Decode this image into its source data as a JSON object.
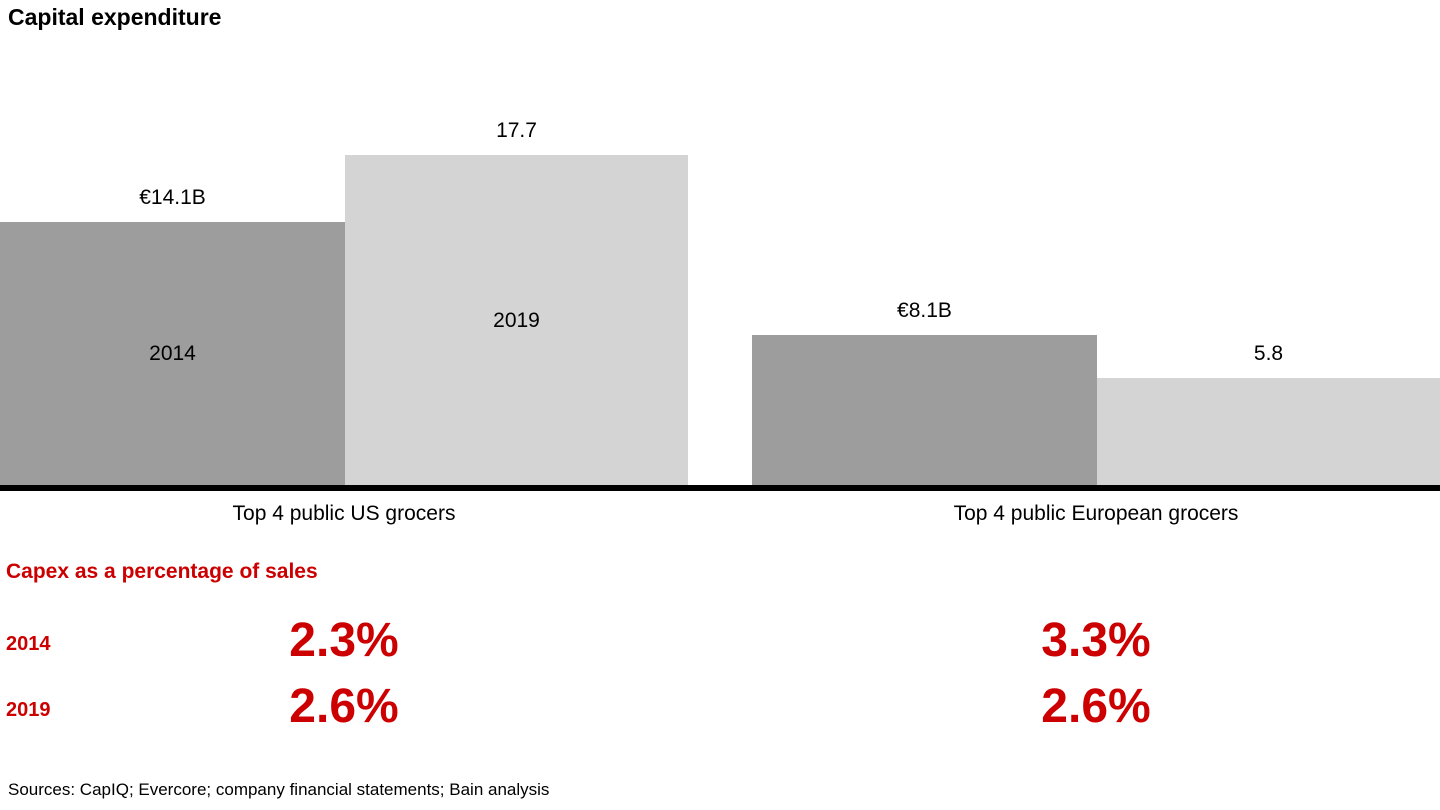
{
  "title": "Capital expenditure",
  "chart_data": {
    "type": "bar",
    "title": "Capital expenditure",
    "unit": "EUR billions",
    "ylim": [
      0,
      19
    ],
    "grid": false,
    "legend": "none (years labeled inside bars)",
    "colors": {
      "2014": "#9d9d9d",
      "2019": "#d4d4d4"
    },
    "groups": [
      {
        "category": "Top 4 public US grocers",
        "bars": [
          {
            "year": "2014",
            "value": 14.1,
            "label": "€14.1B",
            "inside_label": "2014"
          },
          {
            "year": "2019",
            "value": 17.7,
            "label": "17.7",
            "inside_label": "2019"
          }
        ]
      },
      {
        "category": "Top 4 public European grocers",
        "bars": [
          {
            "year": "2014",
            "value": 8.1,
            "label": "€8.1B",
            "inside_label": ""
          },
          {
            "year": "2019",
            "value": 5.8,
            "label": "5.8",
            "inside_label": ""
          }
        ]
      }
    ]
  },
  "capex_section": {
    "heading": "Capex as a percentage of sales",
    "accent_color": "#cc0000",
    "rows": [
      {
        "year": "2014",
        "us": "2.3%",
        "europe": "3.3%"
      },
      {
        "year": "2019",
        "us": "2.6%",
        "europe": "2.6%"
      }
    ]
  },
  "sources": "Sources: CapIQ; Evercore; company financial statements; Bain analysis"
}
